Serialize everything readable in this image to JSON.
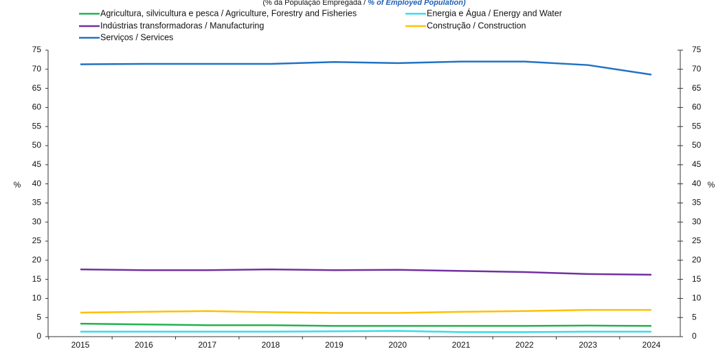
{
  "chart_data": {
    "type": "line",
    "subtitle_pt": "(% da População Empregada /",
    "subtitle_en": "% of Employed Population)",
    "ylabel": "%",
    "y2label": "%",
    "categories": [
      "2015",
      "2016",
      "2017",
      "2018",
      "2019",
      "2020",
      "2021",
      "2022",
      "2023",
      "2024"
    ],
    "series": [
      {
        "name": "Agricultura, silvicultura e pesca / Agriculture, Forestry and Fisheries",
        "color": "#22b14c",
        "values": [
          3.4,
          3.2,
          3.0,
          3.0,
          2.8,
          2.8,
          2.8,
          2.8,
          2.9,
          2.8
        ]
      },
      {
        "name": "Energia e Água / Energy and Water",
        "color": "#33ddee",
        "values": [
          1.3,
          1.3,
          1.3,
          1.3,
          1.4,
          1.5,
          1.2,
          1.2,
          1.3,
          1.3
        ]
      },
      {
        "name": "Indústrias transformadoras / Manufacturing",
        "color": "#7030a0",
        "values": [
          17.6,
          17.4,
          17.4,
          17.6,
          17.4,
          17.5,
          17.2,
          16.9,
          16.4,
          16.2
        ]
      },
      {
        "name": "Construção / Construction",
        "color": "#ffc000",
        "values": [
          6.3,
          6.5,
          6.7,
          6.4,
          6.2,
          6.2,
          6.5,
          6.7,
          7.0,
          7.0
        ]
      },
      {
        "name": "Serviços / Services",
        "color": "#1f72c4",
        "values": [
          71.3,
          71.4,
          71.4,
          71.4,
          71.9,
          71.6,
          72.0,
          72.0,
          71.1,
          68.6
        ]
      }
    ],
    "ylim": [
      0,
      75
    ],
    "yticks": [
      0,
      5,
      10,
      15,
      20,
      25,
      30,
      35,
      40,
      45,
      50,
      55,
      60,
      65,
      70,
      75
    ],
    "y2lim": [
      0,
      75
    ],
    "y2ticks": [
      0,
      5,
      10,
      15,
      20,
      25,
      30,
      35,
      40,
      45,
      50,
      55,
      60,
      65,
      70,
      75
    ],
    "grid": false
  }
}
